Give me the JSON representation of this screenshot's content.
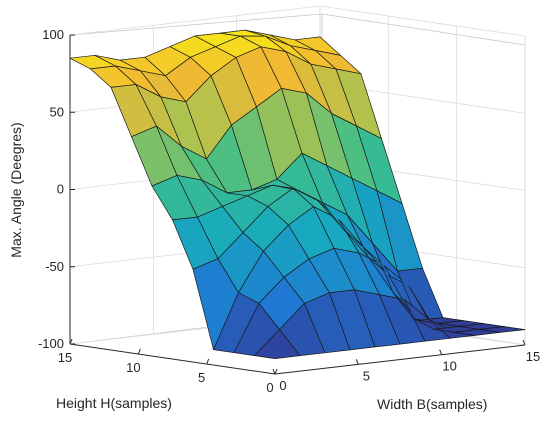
{
  "chart_data": {
    "type": "surface",
    "title": "",
    "xlabel": "Width  B(samples)",
    "ylabel": "Height H(samples)",
    "zlabel": "Max. Angle (Deegres)",
    "xlim": [
      0,
      15
    ],
    "ylim": [
      0,
      15
    ],
    "zlim": [
      -100,
      100
    ],
    "xticks": [
      "0",
      "5",
      "10",
      "15"
    ],
    "yticks": [
      "0",
      "5",
      "10",
      "15"
    ],
    "zticks": [
      "100",
      "50",
      "0",
      "-50",
      "-100"
    ],
    "grid": true,
    "colormap": "parula",
    "colors": {
      "low": "#352a87",
      "mid_low": "#1f8fd8",
      "mid": "#27b39e",
      "mid_high": "#b2c44e",
      "high": "#f2c12e",
      "top": "#f9fb0e"
    },
    "x": [
      0,
      1.5,
      3,
      4.5,
      6,
      7.5,
      9,
      10.5,
      12,
      13.5,
      15
    ],
    "y": [
      0,
      1.5,
      3,
      4.5,
      6,
      7.5,
      9,
      10.5,
      12,
      13.5,
      15
    ],
    "z": [
      [
        -90,
        -90,
        -90,
        -90,
        -90,
        -90,
        -90,
        -90,
        -90,
        -90,
        -90
      ],
      [
        -90,
        -75,
        -60,
        -55,
        -55,
        -60,
        -65,
        -80,
        -90,
        -90,
        -90
      ],
      [
        -90,
        -60,
        -45,
        -35,
        -30,
        -35,
        -45,
        -60,
        -90,
        -90,
        -90
      ],
      [
        -90,
        -55,
        -30,
        -15,
        -5,
        -15,
        -35,
        -55,
        -85,
        -90,
        -90
      ],
      [
        -40,
        -35,
        -20,
        -5,
        5,
        -5,
        -25,
        -45,
        -70,
        -90,
        -90
      ],
      [
        -10,
        -10,
        -5,
        0,
        5,
        0,
        -10,
        -20,
        -40,
        -60,
        -60
      ],
      [
        10,
        15,
        10,
        0,
        0,
        5,
        20,
        10,
        0,
        -10,
        -20
      ],
      [
        40,
        45,
        30,
        20,
        40,
        50,
        60,
        55,
        40,
        30,
        20
      ],
      [
        70,
        70,
        60,
        55,
        70,
        80,
        85,
        80,
        70,
        65,
        60
      ],
      [
        80,
        80,
        75,
        70,
        80,
        85,
        90,
        88,
        80,
        75,
        70
      ],
      [
        85,
        85,
        80,
        80,
        85,
        90,
        90,
        90,
        85,
        80,
        80
      ]
    ]
  }
}
